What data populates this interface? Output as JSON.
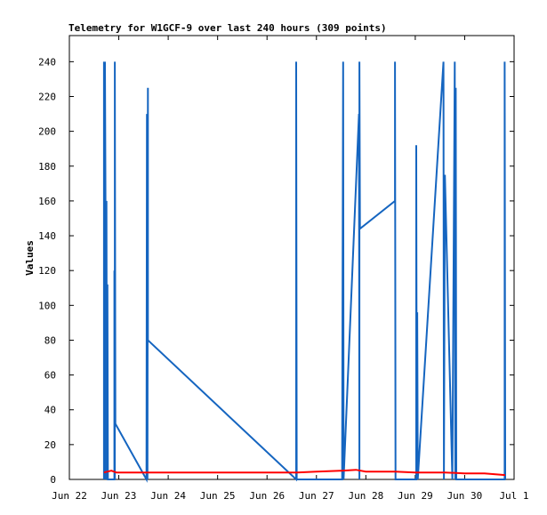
{
  "chart_data": {
    "type": "line",
    "title": "Telemetry for W1GCF-9 over last 240 hours (309 points)",
    "xlabel": "",
    "ylabel": "Values",
    "xlim": [
      0,
      9
    ],
    "ylim": [
      0,
      255
    ],
    "x_ticks": [
      {
        "pos": 0,
        "label": "Jun 22"
      },
      {
        "pos": 1,
        "label": "Jun 23"
      },
      {
        "pos": 2,
        "label": "Jun 24"
      },
      {
        "pos": 3,
        "label": "Jun 25"
      },
      {
        "pos": 4,
        "label": "Jun 26"
      },
      {
        "pos": 5,
        "label": "Jun 27"
      },
      {
        "pos": 6,
        "label": "Jun 28"
      },
      {
        "pos": 7,
        "label": "Jun 29"
      },
      {
        "pos": 8,
        "label": "Jun 30"
      },
      {
        "pos": 9,
        "label": "Jul 1"
      }
    ],
    "y_ticks": [
      0,
      20,
      40,
      60,
      80,
      100,
      120,
      140,
      160,
      180,
      200,
      220,
      240
    ],
    "grid": false,
    "series": [
      {
        "color": "#1565c0",
        "points": [
          [
            0.7,
            0
          ],
          [
            0.7,
            240
          ],
          [
            0.71,
            0
          ],
          [
            0.72,
            240
          ],
          [
            0.73,
            160
          ],
          [
            0.74,
            0
          ],
          [
            0.75,
            160
          ],
          [
            0.76,
            0
          ],
          [
            0.77,
            112
          ],
          [
            0.78,
            0
          ],
          [
            0.91,
            0
          ],
          [
            0.91,
            120
          ],
          [
            0.92,
            0
          ],
          [
            0.92,
            240
          ],
          [
            0.93,
            32
          ],
          [
            1.56,
            0
          ],
          [
            1.57,
            210
          ],
          [
            1.58,
            0
          ],
          [
            1.59,
            225
          ],
          [
            1.59,
            80
          ],
          [
            4.59,
            0
          ],
          [
            4.59,
            240
          ],
          [
            4.6,
            0
          ],
          [
            5.52,
            0
          ],
          [
            5.52,
            16
          ],
          [
            5.54,
            240
          ],
          [
            5.55,
            0
          ],
          [
            5.86,
            210
          ],
          [
            5.87,
            0
          ],
          [
            5.87,
            240
          ],
          [
            5.88,
            144
          ],
          [
            6.59,
            160
          ],
          [
            6.59,
            240
          ],
          [
            6.6,
            0
          ],
          [
            7.02,
            0
          ],
          [
            7.02,
            192
          ],
          [
            7.03,
            0
          ],
          [
            7.04,
            96
          ],
          [
            7.05,
            0
          ],
          [
            7.57,
            240
          ],
          [
            7.58,
            0
          ],
          [
            7.6,
            175
          ],
          [
            7.75,
            0
          ],
          [
            7.8,
            240
          ],
          [
            7.81,
            0
          ],
          [
            7.82,
            225
          ],
          [
            7.83,
            0
          ],
          [
            8.81,
            0
          ],
          [
            8.81,
            240
          ],
          [
            8.82,
            0
          ]
        ]
      },
      {
        "color": "#ff0000",
        "points": [
          [
            0.7,
            4
          ],
          [
            0.85,
            5
          ],
          [
            0.95,
            4
          ],
          [
            2.0,
            4
          ],
          [
            3.0,
            4
          ],
          [
            4.0,
            4
          ],
          [
            4.6,
            4
          ],
          [
            5.0,
            4.5
          ],
          [
            5.5,
            5
          ],
          [
            5.8,
            5.5
          ],
          [
            6.0,
            4.5
          ],
          [
            6.6,
            4.5
          ],
          [
            7.0,
            4
          ],
          [
            7.6,
            4
          ],
          [
            8.0,
            3.5
          ],
          [
            8.4,
            3.5
          ],
          [
            8.82,
            2.5
          ]
        ]
      }
    ]
  }
}
